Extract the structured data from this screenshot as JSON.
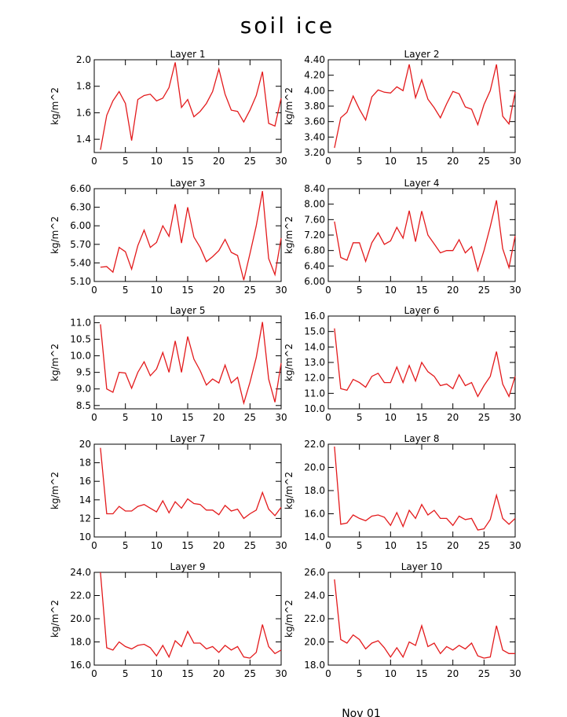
{
  "figure": {
    "title": "soil ice",
    "footer": "Nov 01",
    "line_color": "#e31a1c"
  },
  "chart_data": [
    {
      "type": "line",
      "title": "Layer 1",
      "ylabel": "kg/m^2",
      "xlim": [
        0,
        30
      ],
      "ylim": [
        1.3,
        2.0
      ],
      "xticks": [
        "0",
        "5",
        "10",
        "15",
        "20",
        "25",
        "30"
      ],
      "yticks": [
        "1.4",
        "1.6",
        "1.8",
        "2.0"
      ],
      "x": [
        1,
        2,
        3,
        4,
        5,
        6,
        7,
        8,
        9,
        10,
        11,
        12,
        13,
        14,
        15,
        16,
        17,
        18,
        19,
        20,
        21,
        22,
        23,
        24,
        25,
        26,
        27,
        28,
        29,
        30
      ],
      "y": [
        1.32,
        1.58,
        1.69,
        1.76,
        1.67,
        1.39,
        1.7,
        1.73,
        1.74,
        1.69,
        1.71,
        1.79,
        1.98,
        1.64,
        1.7,
        1.57,
        1.61,
        1.67,
        1.76,
        1.93,
        1.74,
        1.62,
        1.61,
        1.53,
        1.62,
        1.73,
        1.91,
        1.52,
        1.5,
        1.71
      ]
    },
    {
      "type": "line",
      "title": "Layer 2",
      "ylabel": "kg/m^2",
      "xlim": [
        0,
        30
      ],
      "ylim": [
        3.2,
        4.4
      ],
      "xticks": [
        "0",
        "5",
        "10",
        "15",
        "20",
        "25",
        "30"
      ],
      "yticks": [
        "3.20",
        "3.40",
        "3.60",
        "3.80",
        "4.00",
        "4.20",
        "4.40"
      ],
      "x": [
        1,
        2,
        3,
        4,
        5,
        6,
        7,
        8,
        9,
        10,
        11,
        12,
        13,
        14,
        15,
        16,
        17,
        18,
        19,
        20,
        21,
        22,
        23,
        24,
        25,
        26,
        27,
        28,
        29,
        30
      ],
      "y": [
        3.26,
        3.65,
        3.72,
        3.93,
        3.76,
        3.62,
        3.92,
        4.01,
        3.98,
        3.97,
        4.05,
        4.0,
        4.34,
        3.91,
        4.14,
        3.89,
        3.78,
        3.65,
        3.83,
        3.99,
        3.96,
        3.79,
        3.76,
        3.56,
        3.82,
        4.0,
        4.34,
        3.67,
        3.57,
        3.98
      ]
    },
    {
      "type": "line",
      "title": "Layer 3",
      "ylabel": "kg/m^2",
      "xlim": [
        0,
        30
      ],
      "ylim": [
        5.1,
        6.6
      ],
      "xticks": [
        "0",
        "5",
        "10",
        "15",
        "20",
        "25",
        "30"
      ],
      "yticks": [
        "5.10",
        "5.40",
        "5.70",
        "6.00",
        "6.30",
        "6.60"
      ],
      "x": [
        1,
        2,
        3,
        4,
        5,
        6,
        7,
        8,
        9,
        10,
        11,
        12,
        13,
        14,
        15,
        16,
        17,
        18,
        19,
        20,
        21,
        22,
        23,
        24,
        25,
        26,
        27,
        28,
        29,
        30
      ],
      "y": [
        5.33,
        5.34,
        5.25,
        5.65,
        5.58,
        5.3,
        5.68,
        5.93,
        5.65,
        5.73,
        6.0,
        5.83,
        6.35,
        5.72,
        6.3,
        5.82,
        5.65,
        5.42,
        5.5,
        5.6,
        5.78,
        5.57,
        5.52,
        5.12,
        5.55,
        6.0,
        6.56,
        5.47,
        5.21,
        5.8
      ]
    },
    {
      "type": "line",
      "title": "Layer 4",
      "ylabel": "kg/m^2",
      "xlim": [
        0,
        30
      ],
      "ylim": [
        6.0,
        8.4
      ],
      "xticks": [
        "0",
        "5",
        "10",
        "15",
        "20",
        "25",
        "30"
      ],
      "yticks": [
        "6.00",
        "6.40",
        "6.80",
        "7.20",
        "7.60",
        "8.00",
        "8.40"
      ],
      "x": [
        1,
        2,
        3,
        4,
        5,
        6,
        7,
        8,
        9,
        10,
        11,
        12,
        13,
        14,
        15,
        16,
        17,
        18,
        19,
        20,
        21,
        22,
        23,
        24,
        25,
        26,
        27,
        28,
        29,
        30
      ],
      "y": [
        7.55,
        6.62,
        6.55,
        7.0,
        7.0,
        6.52,
        7.0,
        7.26,
        6.96,
        7.05,
        7.4,
        7.12,
        7.83,
        7.03,
        7.82,
        7.2,
        6.97,
        6.74,
        6.8,
        6.8,
        7.08,
        6.74,
        6.9,
        6.28,
        6.8,
        7.42,
        8.1,
        6.85,
        6.36,
        7.18
      ]
    },
    {
      "type": "line",
      "title": "Layer 5",
      "ylabel": "kg/m^2",
      "xlim": [
        0,
        30
      ],
      "ylim": [
        8.4,
        11.2
      ],
      "xticks": [
        "0",
        "5",
        "10",
        "15",
        "20",
        "25",
        "30"
      ],
      "yticks": [
        "8.5",
        "9.0",
        "9.5",
        "10.0",
        "10.5",
        "11.0"
      ],
      "x": [
        1,
        2,
        3,
        4,
        5,
        6,
        7,
        8,
        9,
        10,
        11,
        12,
        13,
        14,
        15,
        16,
        17,
        18,
        19,
        20,
        21,
        22,
        23,
        24,
        25,
        26,
        27,
        28,
        29,
        30
      ],
      "y": [
        10.95,
        9.0,
        8.9,
        9.5,
        9.48,
        9.02,
        9.5,
        9.82,
        9.4,
        9.6,
        10.1,
        9.5,
        10.45,
        9.5,
        10.58,
        9.9,
        9.55,
        9.12,
        9.3,
        9.18,
        9.72,
        9.18,
        9.35,
        8.57,
        9.2,
        9.95,
        11.02,
        9.3,
        8.6,
        9.78
      ]
    },
    {
      "type": "line",
      "title": "Layer 6",
      "ylabel": "kg/m^2",
      "xlim": [
        0,
        30
      ],
      "ylim": [
        10.0,
        16.0
      ],
      "xticks": [
        "0",
        "5",
        "10",
        "15",
        "20",
        "25",
        "30"
      ],
      "yticks": [
        "10.0",
        "11.0",
        "12.0",
        "13.0",
        "14.0",
        "15.0",
        "16.0"
      ],
      "x": [
        1,
        2,
        3,
        4,
        5,
        6,
        7,
        8,
        9,
        10,
        11,
        12,
        13,
        14,
        15,
        16,
        17,
        18,
        19,
        20,
        21,
        22,
        23,
        24,
        25,
        26,
        27,
        28,
        29,
        30
      ],
      "y": [
        15.2,
        11.3,
        11.2,
        11.9,
        11.7,
        11.4,
        12.1,
        12.3,
        11.7,
        11.7,
        12.7,
        11.7,
        12.8,
        11.8,
        13.0,
        12.4,
        12.1,
        11.5,
        11.6,
        11.3,
        12.2,
        11.5,
        11.7,
        10.8,
        11.5,
        12.1,
        13.7,
        11.6,
        10.8,
        12.1
      ]
    },
    {
      "type": "line",
      "title": "Layer 7",
      "ylabel": "kg/m^2",
      "xlim": [
        0,
        30
      ],
      "ylim": [
        10,
        20
      ],
      "xticks": [
        "0",
        "5",
        "10",
        "15",
        "20",
        "25",
        "30"
      ],
      "yticks": [
        "10",
        "12",
        "14",
        "16",
        "18",
        "20"
      ],
      "x": [
        1,
        2,
        3,
        4,
        5,
        6,
        7,
        8,
        9,
        10,
        11,
        12,
        13,
        14,
        15,
        16,
        17,
        18,
        19,
        20,
        21,
        22,
        23,
        24,
        25,
        26,
        27,
        28,
        29,
        30
      ],
      "y": [
        19.6,
        12.5,
        12.5,
        13.3,
        12.8,
        12.8,
        13.3,
        13.5,
        13.1,
        12.7,
        13.9,
        12.6,
        13.8,
        13.1,
        14.1,
        13.6,
        13.5,
        12.9,
        12.9,
        12.4,
        13.4,
        12.8,
        13.0,
        12.0,
        12.5,
        12.9,
        14.8,
        13.0,
        12.3,
        13.2
      ]
    },
    {
      "type": "line",
      "title": "Layer 8",
      "ylabel": "kg/m^2",
      "xlim": [
        0,
        30
      ],
      "ylim": [
        14.0,
        22.0
      ],
      "xticks": [
        "0",
        "5",
        "10",
        "15",
        "20",
        "25",
        "30"
      ],
      "yticks": [
        "14.0",
        "16.0",
        "18.0",
        "20.0",
        "22.0"
      ],
      "x": [
        1,
        2,
        3,
        4,
        5,
        6,
        7,
        8,
        9,
        10,
        11,
        12,
        13,
        14,
        15,
        16,
        17,
        18,
        19,
        20,
        21,
        22,
        23,
        24,
        25,
        26,
        27,
        28,
        29,
        30
      ],
      "y": [
        21.8,
        15.1,
        15.2,
        15.9,
        15.6,
        15.4,
        15.8,
        15.9,
        15.7,
        15.0,
        16.1,
        14.9,
        16.3,
        15.6,
        16.8,
        15.9,
        16.3,
        15.6,
        15.6,
        15.0,
        15.8,
        15.5,
        15.6,
        14.6,
        14.7,
        15.5,
        17.6,
        15.6,
        15.1,
        15.6
      ]
    },
    {
      "type": "line",
      "title": "Layer 9",
      "ylabel": "kg/m^2",
      "xlim": [
        0,
        30
      ],
      "ylim": [
        16.0,
        24.0
      ],
      "xticks": [
        "0",
        "5",
        "10",
        "15",
        "20",
        "25",
        "30"
      ],
      "yticks": [
        "16.0",
        "18.0",
        "20.0",
        "22.0",
        "24.0"
      ],
      "x": [
        1,
        2,
        3,
        4,
        5,
        6,
        7,
        8,
        9,
        10,
        11,
        12,
        13,
        14,
        15,
        16,
        17,
        18,
        19,
        20,
        21,
        22,
        23,
        24,
        25,
        26,
        27,
        28,
        29,
        30
      ],
      "y": [
        24.0,
        17.5,
        17.3,
        18.0,
        17.6,
        17.4,
        17.7,
        17.8,
        17.5,
        16.8,
        17.7,
        16.7,
        18.1,
        17.6,
        18.9,
        17.9,
        17.9,
        17.4,
        17.6,
        17.1,
        17.7,
        17.3,
        17.6,
        16.7,
        16.6,
        17.1,
        19.5,
        17.6,
        17.0,
        17.3
      ]
    },
    {
      "type": "line",
      "title": "Layer 10",
      "ylabel": "kg/m^2",
      "xlim": [
        0,
        30
      ],
      "ylim": [
        18.0,
        26.0
      ],
      "xticks": [
        "0",
        "5",
        "10",
        "15",
        "20",
        "25",
        "30"
      ],
      "yticks": [
        "18.0",
        "20.0",
        "22.0",
        "24.0",
        "26.0"
      ],
      "x": [
        1,
        2,
        3,
        4,
        5,
        6,
        7,
        8,
        9,
        10,
        11,
        12,
        13,
        14,
        15,
        16,
        17,
        18,
        19,
        20,
        21,
        22,
        23,
        24,
        25,
        26,
        27,
        28,
        29,
        30
      ],
      "y": [
        25.4,
        20.2,
        19.9,
        20.6,
        20.2,
        19.4,
        19.9,
        20.1,
        19.5,
        18.7,
        19.5,
        18.7,
        20.0,
        19.7,
        21.4,
        19.6,
        19.9,
        19.0,
        19.6,
        19.3,
        19.7,
        19.4,
        19.9,
        18.8,
        18.6,
        18.7,
        21.4,
        19.3,
        19.0,
        19.0
      ]
    }
  ]
}
